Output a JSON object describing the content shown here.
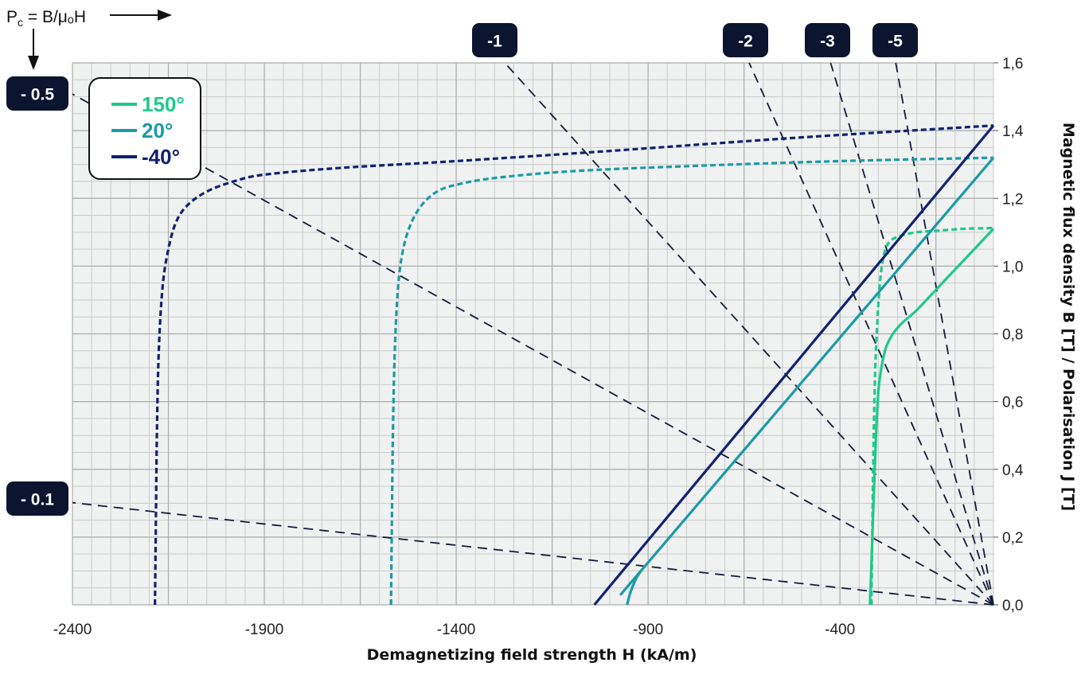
{
  "pc_label": {
    "main": "P",
    "sub": "c",
    "rest": " = B/μₒH"
  },
  "load_line_labels": [
    {
      "id": "ll-m0.5",
      "text": "- 0.5",
      "slope": -0.5
    },
    {
      "id": "ll-m0.1",
      "text": "- 0.1",
      "slope": -0.1
    },
    {
      "id": "ll-m1",
      "text": "-1",
      "slope": -1
    },
    {
      "id": "ll-m2",
      "text": "-2",
      "slope": -2
    },
    {
      "id": "ll-m3",
      "text": "-3",
      "slope": -3
    },
    {
      "id": "ll-m5",
      "text": "-5",
      "slope": -5
    }
  ],
  "chart_data": {
    "type": "line",
    "xlabel": "Demagnetizing field strength H (kA/m)",
    "ylabel": "Magnetic flux density B [T] / Polarisation J [T]",
    "xlim": [
      -2400,
      0
    ],
    "ylim": [
      0,
      1.6
    ],
    "x_ticks": [
      "-2400",
      "-1900",
      "-1400",
      "-900",
      "-400"
    ],
    "x_tick_values": [
      -2400,
      -1900,
      -1400,
      -900,
      -400
    ],
    "y_ticks": [
      "0,0",
      "0,2",
      "0,4",
      "0,6",
      "0,8",
      "1,0",
      "1,2",
      "1,4",
      "1,6"
    ],
    "y_tick_values": [
      0,
      0.2,
      0.4,
      0.6,
      0.8,
      1.0,
      1.2,
      1.4,
      1.6
    ],
    "grid": true,
    "legend": "top-left",
    "series": [
      {
        "name": "150°",
        "color": "#1fc98a",
        "kind": "J",
        "x": [
          -318,
          -316,
          -312,
          -308,
          -302,
          -296,
          -288,
          -278,
          -262,
          -240,
          -200,
          -140,
          -80,
          -20,
          0
        ],
        "y": [
          0,
          0.2,
          0.5,
          0.7,
          0.85,
          0.95,
          1.02,
          1.06,
          1.08,
          1.09,
          1.1,
          1.105,
          1.11,
          1.112,
          1.112
        ]
      },
      {
        "name": "150°",
        "color": "#1fc98a",
        "kind": "B",
        "x": [
          -322,
          -318,
          -312,
          -306,
          -300,
          -292,
          -280,
          -262,
          -240,
          -200,
          -150,
          -100,
          -50,
          0
        ],
        "y": [
          0,
          0.12,
          0.32,
          0.5,
          0.63,
          0.7,
          0.76,
          0.8,
          0.83,
          0.87,
          0.93,
          0.99,
          1.05,
          1.11
        ]
      },
      {
        "name": "20°",
        "color": "#1a9ba6",
        "kind": "J",
        "x": [
          -1570,
          -1568,
          -1565,
          -1560,
          -1552,
          -1540,
          -1520,
          -1490,
          -1450,
          -1400,
          -1300,
          -1100,
          -800,
          -400,
          0
        ],
        "y": [
          0,
          0.2,
          0.5,
          0.75,
          0.93,
          1.04,
          1.12,
          1.18,
          1.22,
          1.24,
          1.26,
          1.28,
          1.295,
          1.31,
          1.32
        ]
      },
      {
        "name": "20°",
        "color": "#1a9ba6",
        "kind": "B",
        "x": [
          -955,
          -945,
          -930,
          -915,
          -900,
          0
        ],
        "y": [
          0,
          0.04,
          0.08,
          0.105,
          0.125,
          1.32
        ]
      },
      {
        "name": "-40°",
        "color": "#0f2270",
        "kind": "J",
        "x": [
          -2185,
          -2183,
          -2180,
          -2175,
          -2165,
          -2150,
          -2130,
          -2100,
          -2050,
          -1980,
          -1900,
          -1700,
          -1400,
          -1000,
          -500,
          0
        ],
        "y": [
          0,
          0.2,
          0.5,
          0.75,
          0.94,
          1.05,
          1.13,
          1.18,
          1.22,
          1.25,
          1.27,
          1.29,
          1.31,
          1.34,
          1.38,
          1.415
        ]
      },
      {
        "name": "-40°",
        "color": "#0f2270",
        "kind": "B",
        "x": [
          -1040,
          0
        ],
        "y": [
          0,
          1.415
        ]
      }
    ]
  }
}
